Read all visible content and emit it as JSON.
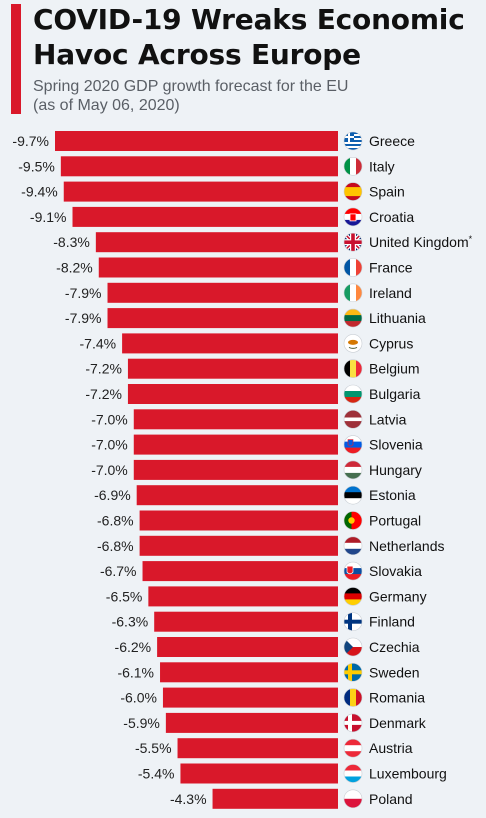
{
  "header": {
    "title": "COVID-19 Wreaks Economic Havoc Across Europe",
    "subtitle_line1": "Spring 2020 GDP growth forecast for the EU",
    "subtitle_line2": "(as of May 06, 2020)"
  },
  "colors": {
    "accent": "#d9182a",
    "bar": "#d9182a",
    "background": "#eef2f6"
  },
  "chart_data": {
    "type": "bar",
    "orientation": "horizontal",
    "title": "COVID-19 Wreaks Economic Havoc Across Europe",
    "subtitle": "Spring 2020 GDP growth forecast for the EU (as of May 06, 2020)",
    "xlabel": "",
    "ylabel": "",
    "value_suffix": "%",
    "xlim": [
      -9.7,
      0
    ],
    "grid": false,
    "legend": "none",
    "categories": [
      "Greece",
      "Italy",
      "Spain",
      "Croatia",
      "United Kingdom",
      "France",
      "Ireland",
      "Lithuania",
      "Cyprus",
      "Belgium",
      "Bulgaria",
      "Latvia",
      "Slovenia",
      "Hungary",
      "Estonia",
      "Portugal",
      "Netherlands",
      "Slovakia",
      "Germany",
      "Finland",
      "Czechia",
      "Sweden",
      "Romania",
      "Denmark",
      "Austria",
      "Luxembourg",
      "Poland"
    ],
    "values": [
      -9.7,
      -9.5,
      -9.4,
      -9.1,
      -8.3,
      -8.2,
      -7.9,
      -7.9,
      -7.4,
      -7.2,
      -7.2,
      -7.0,
      -7.0,
      -7.0,
      -6.9,
      -6.8,
      -6.8,
      -6.7,
      -6.5,
      -6.3,
      -6.2,
      -6.1,
      -6.0,
      -5.9,
      -5.5,
      -5.4,
      -4.3
    ],
    "annotations": [
      {
        "category": "United Kingdom",
        "mark": "*"
      }
    ],
    "flags": [
      "gr-flag-icon",
      "it-flag-icon",
      "es-flag-icon",
      "hr-flag-icon",
      "uk-flag-icon",
      "fr-flag-icon",
      "ie-flag-icon",
      "lt-flag-icon",
      "cy-flag-icon",
      "be-flag-icon",
      "bg-flag-icon",
      "lv-flag-icon",
      "si-flag-icon",
      "hu-flag-icon",
      "ee-flag-icon",
      "pt-flag-icon",
      "nl-flag-icon",
      "sk-flag-icon",
      "de-flag-icon",
      "fi-flag-icon",
      "cz-flag-icon",
      "se-flag-icon",
      "ro-flag-icon",
      "dk-flag-icon",
      "at-flag-icon",
      "lu-flag-icon",
      "pl-flag-icon"
    ]
  }
}
